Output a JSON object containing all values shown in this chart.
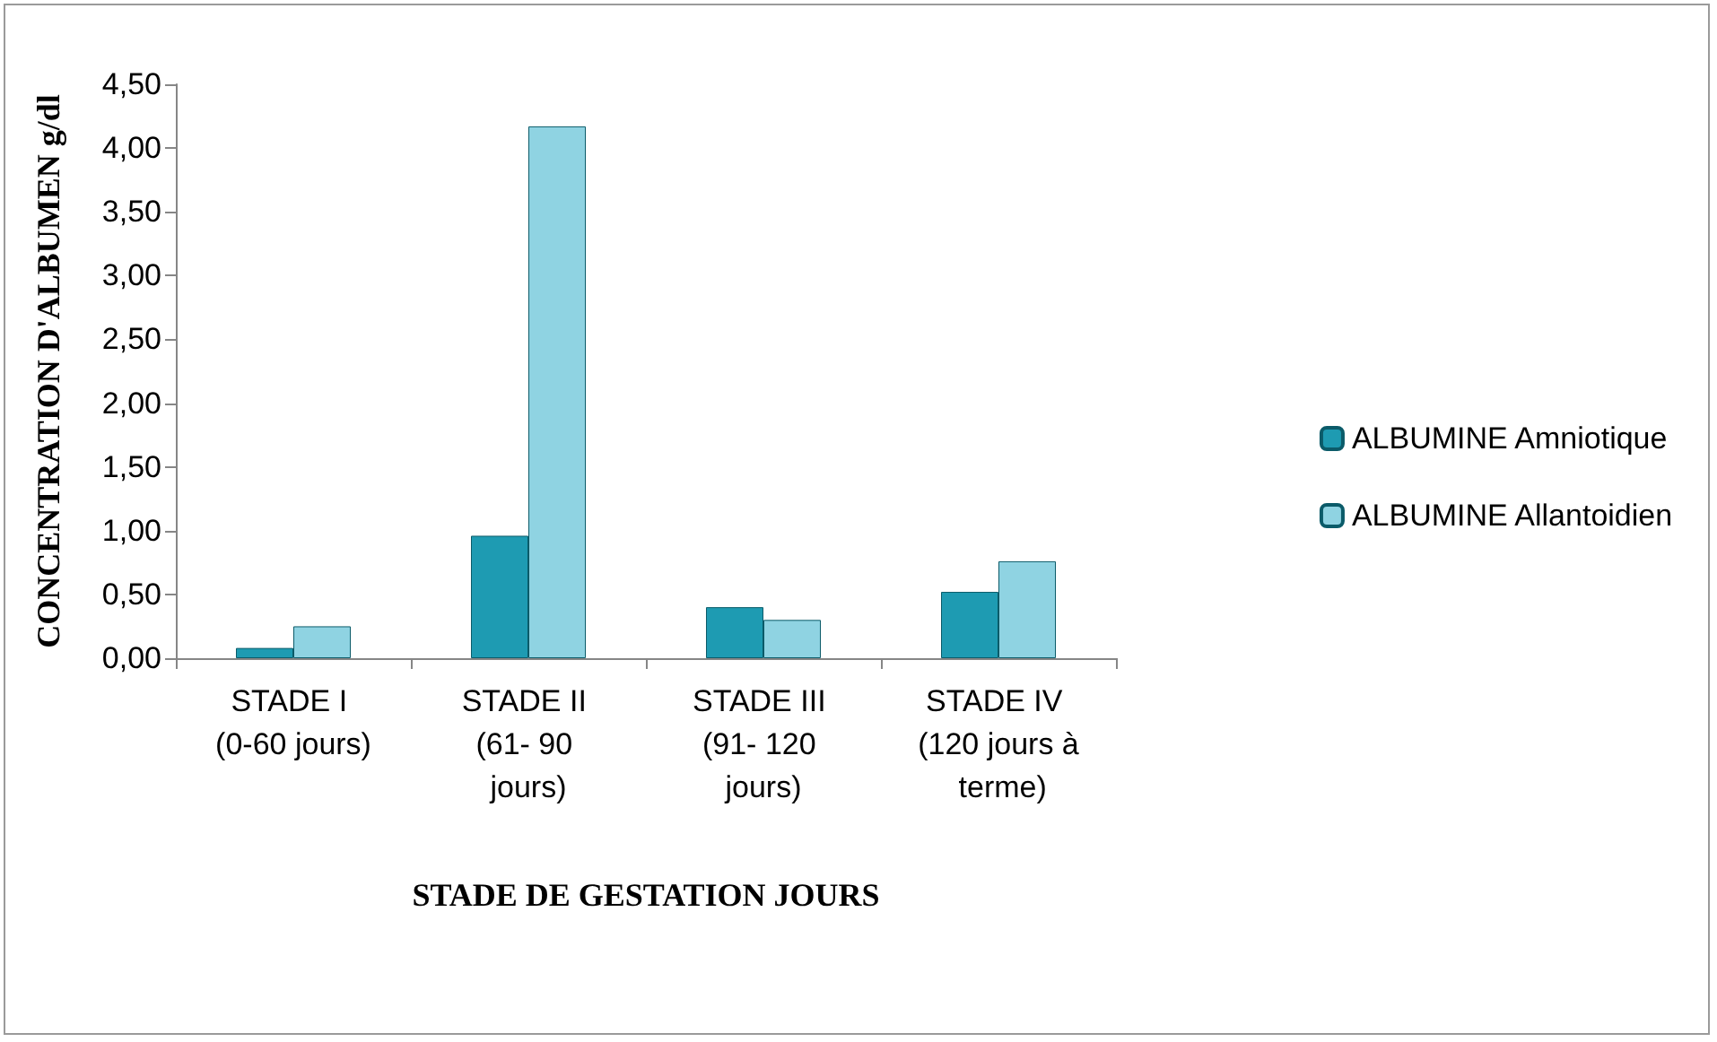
{
  "chart_data": {
    "type": "bar",
    "xlabel": "STADE DE GESTATION JOURS",
    "ylabel": "CONCENTRATION D'ALBUMEN g/dl",
    "categories": [
      "STADE I (0-60 jours)",
      "STADE II (61- 90 jours)",
      "STADE III (91- 120 jours)",
      "STADE IV (120 jours à terme)"
    ],
    "series": [
      {
        "name": "ALBUMINE Amniotique",
        "color": "#1e9bb2",
        "values": [
          0.08,
          0.96,
          0.4,
          0.52
        ]
      },
      {
        "name": "ALBUMINE Allantoidien",
        "color": "#8fd3e2",
        "values": [
          0.25,
          4.17,
          0.3,
          0.76
        ]
      }
    ],
    "ylim": [
      0,
      4.5
    ],
    "yticks": [
      {
        "value": 0,
        "label": "0,00"
      },
      {
        "value": 0.5,
        "label": "0,50"
      },
      {
        "value": 1,
        "label": "1,00"
      },
      {
        "value": 1.5,
        "label": "1,50"
      },
      {
        "value": 2,
        "label": "2,00"
      },
      {
        "value": 2.5,
        "label": "2,50"
      },
      {
        "value": 3,
        "label": "3,00"
      },
      {
        "value": 3.5,
        "label": "3,50"
      },
      {
        "value": 4,
        "label": "4,00"
      },
      {
        "value": 4.5,
        "label": "4,50"
      }
    ],
    "grid": false,
    "legend": "right"
  }
}
